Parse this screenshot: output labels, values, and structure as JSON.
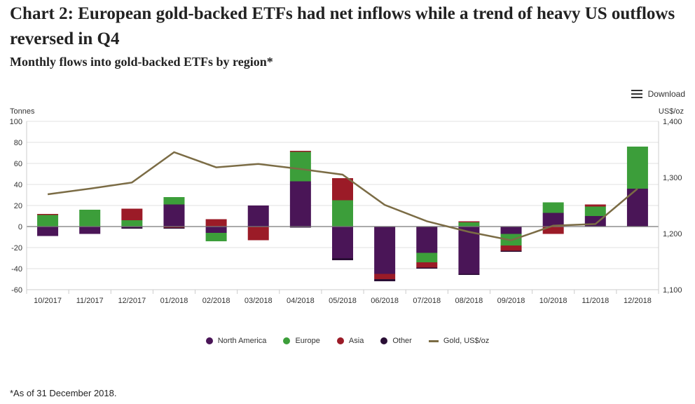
{
  "header": {
    "title": "Chart 2: European gold-backed ETFs had net inflows while a trend of heavy US outflows reversed in Q4",
    "subtitle": "Monthly flows into gold-backed ETFs by region*"
  },
  "toolbar": {
    "download_label": "Download",
    "download_icon": "menu-icon"
  },
  "footnote": "*As of 31 December 2018.",
  "colors": {
    "north_america": "#4a1557",
    "europe": "#3c9e3a",
    "asia": "#9b1b27",
    "other": "#2a0e35",
    "gold": "#7b6c45",
    "zero_line": "#777777",
    "grid": "#e2e2e2"
  },
  "chart_data": {
    "type": "bar",
    "stacked": true,
    "categories": [
      "10/2017",
      "11/2017",
      "12/2017",
      "01/2018",
      "02/2018",
      "03/2018",
      "04/2018",
      "05/2018",
      "06/2018",
      "07/2018",
      "08/2018",
      "09/2018",
      "10/2018",
      "11/2018",
      "12/2018"
    ],
    "y_left": {
      "label": "Tonnes",
      "min": -60,
      "max": 100,
      "ticks": [
        -60,
        -40,
        -20,
        0,
        20,
        40,
        60,
        80,
        100
      ]
    },
    "y_right": {
      "label": "US$/oz",
      "min": 1100,
      "max": 1400,
      "ticks": [
        "1,100",
        "1,200",
        "1,300",
        "1,400"
      ],
      "tick_values": [
        1100,
        1200,
        1300,
        1400
      ]
    },
    "series": [
      {
        "name": "North America",
        "color_key": "north_america",
        "values": [
          -9,
          -7,
          -1,
          21,
          -6,
          20,
          43,
          -30,
          -45,
          -25,
          -45,
          -7,
          13,
          10,
          36
        ]
      },
      {
        "name": "Europe",
        "color_key": "europe",
        "values": [
          11,
          16,
          6,
          7,
          -8,
          0,
          28,
          25,
          0,
          -9,
          4,
          -11,
          10,
          9,
          40
        ]
      },
      {
        "name": "Asia",
        "color_key": "asia",
        "values": [
          1,
          0,
          11,
          -1,
          7,
          -13,
          1,
          21,
          -5,
          -5,
          1,
          -5,
          -7,
          2,
          0
        ]
      },
      {
        "name": "Other",
        "color_key": "other",
        "values": [
          0,
          0,
          -1,
          -1,
          0,
          0,
          -1,
          -2,
          -2,
          -1,
          -1,
          -1,
          0,
          0,
          0
        ]
      }
    ],
    "line": {
      "name": "Gold, US$/oz",
      "color_key": "gold",
      "axis": "right",
      "values": [
        1270,
        1280,
        1291,
        1345,
        1318,
        1324,
        1315,
        1305,
        1251,
        1222,
        1203,
        1188,
        1214,
        1217,
        1280
      ]
    },
    "legend_position": "bottom",
    "grid": true
  }
}
